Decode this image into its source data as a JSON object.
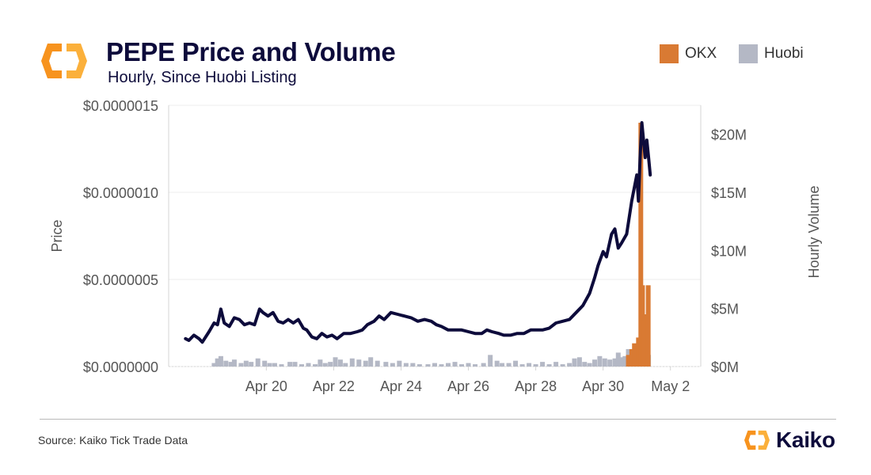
{
  "header": {
    "title": "PEPE Price and Volume",
    "subtitle": "Hourly, Since Huobi Listing"
  },
  "footer": {
    "source": "Source: Kaiko Tick Trade Data",
    "brand": "Kaiko"
  },
  "colors": {
    "price_line": "#0d0b3b",
    "okx": "#d97a33",
    "huobi": "#b4b8c5",
    "logo_orange": "#f7931e",
    "logo_yellow": "#fbb03b"
  },
  "chart_data": {
    "type": "line+bar",
    "title": "PEPE Price and Volume",
    "subtitle": "Hourly, Since Huobi Listing",
    "legend": {
      "placement": "top-right",
      "entries": [
        "OKX",
        "Huobi"
      ]
    },
    "y_left": {
      "label": "Price",
      "range": [
        0,
        1.5e-06
      ],
      "ticks": [
        0,
        5e-07,
        1e-06,
        1.5e-06
      ],
      "tick_labels": [
        "$0.0000000",
        "$0.0000005",
        "$0.0000010",
        "$0.0000015"
      ]
    },
    "y_right": {
      "label": "Hourly Volume",
      "range": [
        0,
        22500000
      ],
      "ticks": [
        0,
        5000000,
        10000000,
        15000000,
        20000000
      ],
      "tick_labels": [
        "$0M",
        "$5M",
        "$10M",
        "$15M",
        "$20M"
      ]
    },
    "x_axis": {
      "range": [
        -1.9,
        13.9
      ],
      "tick_positions": [
        1,
        3,
        5,
        7,
        9,
        11,
        13
      ],
      "tick_labels": [
        "Apr 20",
        "Apr 22",
        "Apr 24",
        "Apr 26",
        "Apr 28",
        "Apr 30",
        "May 2"
      ],
      "note": "x in days since Apr 19 00:00"
    },
    "price_series": {
      "name": "Price",
      "points": [
        [
          -1.4,
          1.6e-07
        ],
        [
          -1.3,
          1.5e-07
        ],
        [
          -1.15,
          1.8e-07
        ],
        [
          -1.0,
          1.6e-07
        ],
        [
          -0.9,
          1.4e-07
        ],
        [
          -0.7,
          2e-07
        ],
        [
          -0.55,
          2.5e-07
        ],
        [
          -0.45,
          2.4e-07
        ],
        [
          -0.35,
          3.3e-07
        ],
        [
          -0.25,
          2.5e-07
        ],
        [
          -0.1,
          2.3e-07
        ],
        [
          0.05,
          2.8e-07
        ],
        [
          0.2,
          2.7e-07
        ],
        [
          0.35,
          2.4e-07
        ],
        [
          0.5,
          2.5e-07
        ],
        [
          0.65,
          2.4e-07
        ],
        [
          0.8,
          3.3e-07
        ],
        [
          0.9,
          3.1e-07
        ],
        [
          1.05,
          2.9e-07
        ],
        [
          1.2,
          3.1e-07
        ],
        [
          1.35,
          2.6e-07
        ],
        [
          1.5,
          2.5e-07
        ],
        [
          1.65,
          2.7e-07
        ],
        [
          1.8,
          2.5e-07
        ],
        [
          1.95,
          2.7e-07
        ],
        [
          2.1,
          2.2e-07
        ],
        [
          2.2,
          2.1e-07
        ],
        [
          2.35,
          1.7e-07
        ],
        [
          2.5,
          1.6e-07
        ],
        [
          2.65,
          1.9e-07
        ],
        [
          2.8,
          1.7e-07
        ],
        [
          2.95,
          1.8e-07
        ],
        [
          3.1,
          1.6e-07
        ],
        [
          3.3,
          1.9e-07
        ],
        [
          3.5,
          1.9e-07
        ],
        [
          3.7,
          2e-07
        ],
        [
          3.85,
          2.1e-07
        ],
        [
          4.0,
          2.4e-07
        ],
        [
          4.2,
          2.6e-07
        ],
        [
          4.35,
          2.9e-07
        ],
        [
          4.5,
          2.7e-07
        ],
        [
          4.7,
          3.1e-07
        ],
        [
          4.9,
          3e-07
        ],
        [
          5.1,
          2.9e-07
        ],
        [
          5.3,
          2.8e-07
        ],
        [
          5.5,
          2.6e-07
        ],
        [
          5.7,
          2.7e-07
        ],
        [
          5.9,
          2.6e-07
        ],
        [
          6.05,
          2.4e-07
        ],
        [
          6.2,
          2.3e-07
        ],
        [
          6.4,
          2.1e-07
        ],
        [
          6.6,
          2.1e-07
        ],
        [
          6.8,
          2.1e-07
        ],
        [
          7.0,
          2e-07
        ],
        [
          7.2,
          1.9e-07
        ],
        [
          7.4,
          1.9e-07
        ],
        [
          7.55,
          2.1e-07
        ],
        [
          7.7,
          2e-07
        ],
        [
          7.9,
          1.9e-07
        ],
        [
          8.05,
          1.8e-07
        ],
        [
          8.25,
          1.8e-07
        ],
        [
          8.45,
          1.9e-07
        ],
        [
          8.65,
          1.9e-07
        ],
        [
          8.85,
          2.1e-07
        ],
        [
          9.05,
          2.1e-07
        ],
        [
          9.2,
          2.1e-07
        ],
        [
          9.4,
          2.2e-07
        ],
        [
          9.6,
          2.5e-07
        ],
        [
          9.8,
          2.6e-07
        ],
        [
          10.0,
          2.7e-07
        ],
        [
          10.2,
          3.1e-07
        ],
        [
          10.4,
          3.5e-07
        ],
        [
          10.6,
          4.2e-07
        ],
        [
          10.75,
          5.1e-07
        ],
        [
          10.85,
          5.8e-07
        ],
        [
          11.0,
          6.6e-07
        ],
        [
          11.1,
          6.3e-07
        ],
        [
          11.25,
          7.6e-07
        ],
        [
          11.35,
          7.9e-07
        ],
        [
          11.45,
          6.8e-07
        ],
        [
          11.55,
          7.1e-07
        ],
        [
          11.7,
          7.6e-07
        ],
        [
          11.85,
          9.5e-07
        ],
        [
          12.0,
          1.1e-06
        ],
        [
          12.05,
          9.5e-07
        ],
        [
          12.1,
          1.2e-06
        ],
        [
          12.15,
          1.4e-06
        ],
        [
          12.2,
          1.3e-06
        ],
        [
          12.25,
          1.2e-06
        ],
        [
          12.3,
          1.3e-06
        ],
        [
          12.35,
          1.2e-06
        ],
        [
          12.4,
          1.1e-06
        ]
      ]
    },
    "volume_series": [
      {
        "name": "OKX",
        "color": "#d97a33",
        "bars": [
          [
            11.75,
            1000000
          ],
          [
            11.85,
            1500000
          ],
          [
            11.93,
            2000000
          ],
          [
            12.05,
            2500000
          ],
          [
            12.12,
            21000000
          ],
          [
            12.17,
            7000000
          ],
          [
            12.22,
            4000000
          ],
          [
            12.28,
            4500000
          ],
          [
            12.34,
            7000000
          ]
        ]
      },
      {
        "name": "Huobi",
        "color": "#b4b8c5",
        "bars": [
          [
            -0.55,
            300000
          ],
          [
            -0.45,
            700000
          ],
          [
            -0.35,
            900000
          ],
          [
            -0.2,
            500000
          ],
          [
            -0.05,
            400000
          ],
          [
            0.05,
            600000
          ],
          [
            0.25,
            300000
          ],
          [
            0.4,
            500000
          ],
          [
            0.55,
            400000
          ],
          [
            0.75,
            700000
          ],
          [
            0.95,
            500000
          ],
          [
            1.1,
            300000
          ],
          [
            1.25,
            300000
          ],
          [
            1.45,
            200000
          ],
          [
            1.7,
            400000
          ],
          [
            1.85,
            400000
          ],
          [
            2.05,
            200000
          ],
          [
            2.25,
            300000
          ],
          [
            2.45,
            200000
          ],
          [
            2.6,
            600000
          ],
          [
            2.75,
            300000
          ],
          [
            2.9,
            400000
          ],
          [
            3.05,
            800000
          ],
          [
            3.2,
            600000
          ],
          [
            3.35,
            300000
          ],
          [
            3.55,
            700000
          ],
          [
            3.75,
            600000
          ],
          [
            3.95,
            500000
          ],
          [
            4.1,
            800000
          ],
          [
            4.3,
            500000
          ],
          [
            4.55,
            400000
          ],
          [
            4.75,
            300000
          ],
          [
            4.95,
            500000
          ],
          [
            5.15,
            300000
          ],
          [
            5.35,
            300000
          ],
          [
            5.55,
            200000
          ],
          [
            5.8,
            200000
          ],
          [
            6.0,
            300000
          ],
          [
            6.2,
            200000
          ],
          [
            6.4,
            300000
          ],
          [
            6.6,
            400000
          ],
          [
            6.8,
            200000
          ],
          [
            7.0,
            300000
          ],
          [
            7.2,
            200000
          ],
          [
            7.45,
            300000
          ],
          [
            7.65,
            1000000
          ],
          [
            7.85,
            500000
          ],
          [
            8.0,
            300000
          ],
          [
            8.2,
            300000
          ],
          [
            8.4,
            500000
          ],
          [
            8.6,
            200000
          ],
          [
            8.8,
            300000
          ],
          [
            9.0,
            200000
          ],
          [
            9.2,
            400000
          ],
          [
            9.4,
            200000
          ],
          [
            9.6,
            400000
          ],
          [
            9.8,
            200000
          ],
          [
            10.0,
            300000
          ],
          [
            10.15,
            700000
          ],
          [
            10.3,
            800000
          ],
          [
            10.45,
            400000
          ],
          [
            10.6,
            300000
          ],
          [
            10.75,
            600000
          ],
          [
            10.9,
            900000
          ],
          [
            11.05,
            700000
          ],
          [
            11.2,
            600000
          ],
          [
            11.35,
            700000
          ],
          [
            11.45,
            1200000
          ],
          [
            11.55,
            800000
          ],
          [
            11.65,
            900000
          ],
          [
            11.75,
            1500000
          ],
          [
            11.85,
            1300000
          ],
          [
            11.95,
            1700000
          ],
          [
            12.05,
            1900000
          ],
          [
            12.15,
            2000000
          ],
          [
            12.25,
            1500000
          ],
          [
            12.35,
            1000000
          ]
        ]
      }
    ]
  }
}
